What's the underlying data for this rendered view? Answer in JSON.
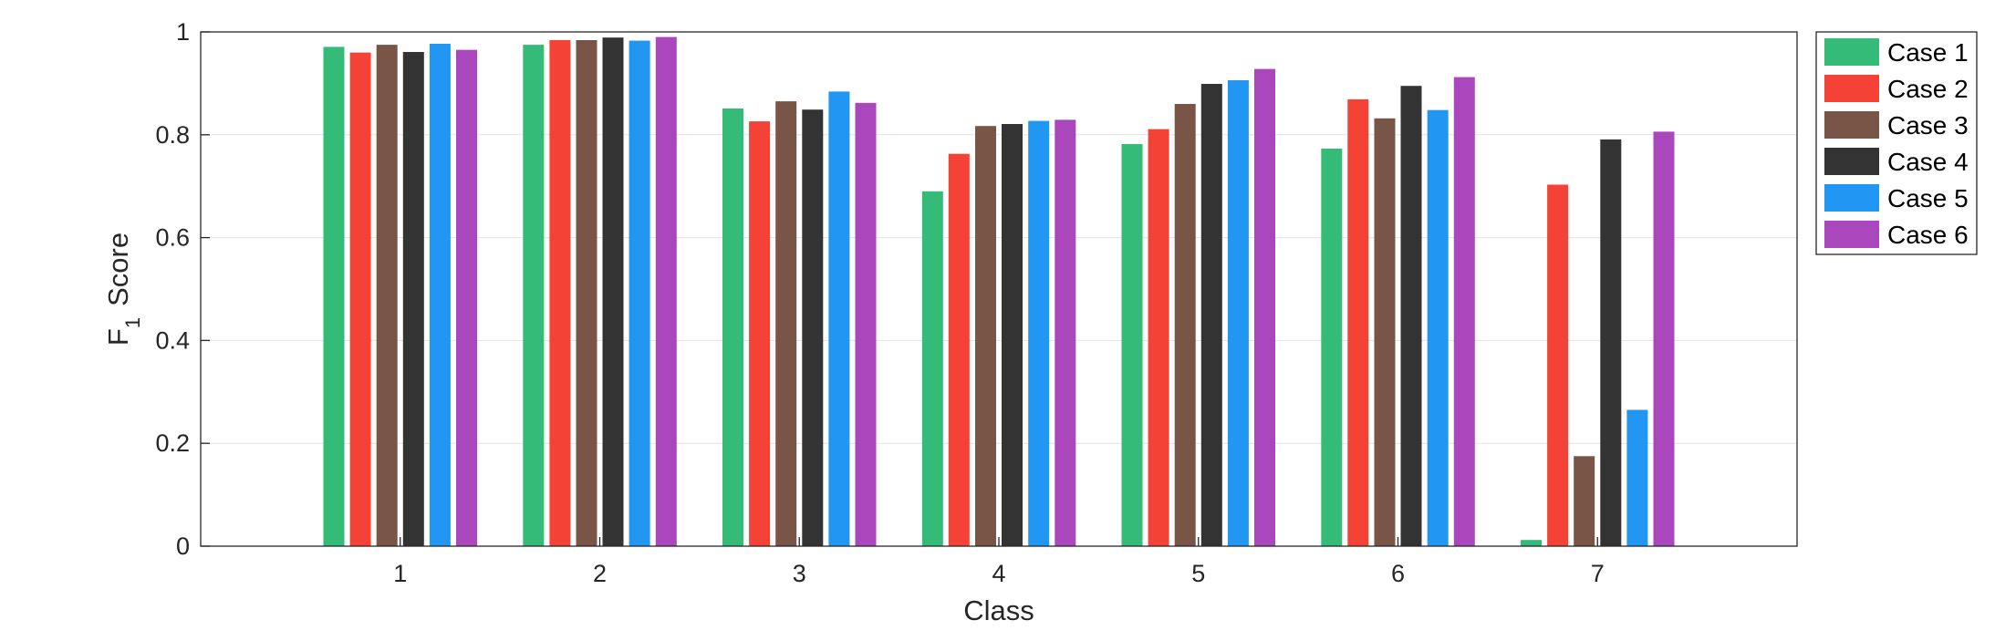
{
  "chart_data": {
    "type": "bar",
    "categories": [
      "1",
      "2",
      "3",
      "4",
      "5",
      "6",
      "7"
    ],
    "series": [
      {
        "name": "Case 1",
        "color": "#33BB77",
        "values": [
          0.971,
          0.975,
          0.851,
          0.69,
          0.782,
          0.773,
          0.012
        ]
      },
      {
        "name": "Case 2",
        "color": "#F44336",
        "values": [
          0.96,
          0.984,
          0.826,
          0.763,
          0.811,
          0.869,
          0.703
        ]
      },
      {
        "name": "Case 3",
        "color": "#795548",
        "values": [
          0.975,
          0.984,
          0.865,
          0.817,
          0.86,
          0.832,
          0.175
        ]
      },
      {
        "name": "Case 4",
        "color": "#333333",
        "values": [
          0.961,
          0.989,
          0.849,
          0.821,
          0.899,
          0.895,
          0.791
        ]
      },
      {
        "name": "Case 5",
        "color": "#2196F3",
        "values": [
          0.977,
          0.983,
          0.884,
          0.827,
          0.906,
          0.848,
          0.265
        ]
      },
      {
        "name": "Case 6",
        "color": "#AB47BC",
        "values": [
          0.965,
          0.99,
          0.862,
          0.829,
          0.928,
          0.912,
          0.806
        ]
      }
    ],
    "xlabel": "Class",
    "ylabel_main": "F",
    "ylabel_sub": "1",
    "ylabel_rest": "Score",
    "ylim": [
      0,
      1
    ],
    "yticks": [
      "0",
      "0.2",
      "0.4",
      "0.6",
      "0.8",
      "1"
    ],
    "ytick_values": [
      0,
      0.2,
      0.4,
      0.6,
      0.8,
      1
    ],
    "xlim": [
      0,
      8
    ],
    "grid": "horizontal",
    "legend_position": "outside-top-right"
  }
}
